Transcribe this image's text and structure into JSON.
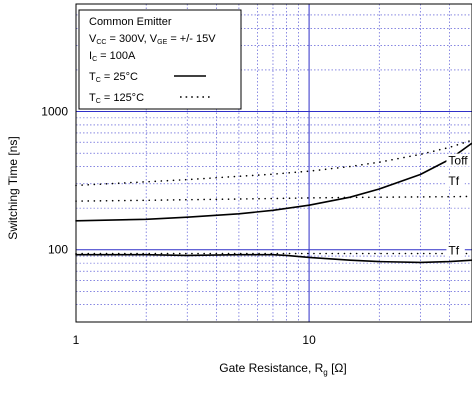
{
  "chart_data": {
    "type": "line",
    "xlabel": "Gate Resistance, R",
    "xlabel_sub": "g",
    "xlabel_unit": " [Ω]",
    "ylabel": "Switching Time [ns]",
    "xscale": "log",
    "yscale": "log",
    "xlim": [
      1,
      50
    ],
    "ylim": [
      30,
      6000
    ],
    "xtick_labels": [
      {
        "value": 1,
        "label": "1"
      },
      {
        "value": 10,
        "label": "10"
      }
    ],
    "ytick_labels": [
      {
        "value": 100,
        "label": "100"
      },
      {
        "value": 1000,
        "label": "1000"
      }
    ],
    "grid": true,
    "legend": {
      "placement": "top-left",
      "title": "Common Emitter",
      "conditions_line1": "V_CC = 300V, V_GE = +/- 15V",
      "conditions_line2": "I_C = 100A",
      "tc1_text": "T",
      "tc1_sub": "C",
      "tc1_val": " = 25°C",
      "tc2_text": "T",
      "tc2_sub": "C",
      "tc2_val": " = 125°C",
      "vcc": "V",
      "vcc_sub": "CC",
      "vcc_val": " = 300V, V",
      "vge_sub": "GE",
      "vge_val": " = +/- 15V",
      "ic": "I",
      "ic_sub": "C",
      "ic_val": " = 100A"
    },
    "series": [
      {
        "name": "Toff",
        "tc": "25°C",
        "style": "solid",
        "x": [
          1,
          2,
          3,
          5,
          7,
          10,
          15,
          20,
          30,
          40,
          50
        ],
        "y": [
          162,
          166,
          172,
          182,
          193,
          210,
          240,
          275,
          350,
          450,
          590
        ]
      },
      {
        "name": "Toff",
        "tc": "125°C",
        "style": "dotted",
        "x": [
          1,
          2,
          3,
          5,
          7,
          10,
          15,
          20,
          30,
          40,
          50
        ],
        "y": [
          292,
          310,
          322,
          340,
          352,
          370,
          400,
          430,
          490,
          550,
          620
        ]
      },
      {
        "name": "Tf",
        "tc": "125°C",
        "style": "dotted",
        "x": [
          1,
          2,
          3,
          5,
          7,
          10,
          15,
          20,
          30,
          40,
          50
        ],
        "y": [
          225,
          228,
          230,
          233,
          235,
          237,
          239,
          240,
          241,
          242,
          243
        ]
      },
      {
        "name": "Tf",
        "tc": "25°C",
        "style": "solid",
        "x": [
          1,
          2,
          3,
          5,
          7,
          8,
          10,
          15,
          20,
          30,
          40,
          50
        ],
        "y": [
          92,
          92,
          91,
          92,
          92,
          91,
          88,
          84,
          82,
          81,
          82,
          84
        ]
      },
      {
        "name": "Tf",
        "tc": "125°C",
        "style": "dotted",
        "x": [
          1,
          2,
          3,
          5,
          7,
          10,
          15,
          20,
          30,
          40,
          50
        ],
        "y": [
          94,
          94,
          94,
          94,
          94,
          94,
          94,
          94,
          94,
          94,
          94
        ]
      }
    ],
    "annotations": [
      {
        "text": "Toff",
        "x": 40,
        "y": 420
      },
      {
        "text": "Tf",
        "x": 40,
        "y": 300
      },
      {
        "text": "Tf",
        "x": 40,
        "y": 94
      }
    ]
  }
}
